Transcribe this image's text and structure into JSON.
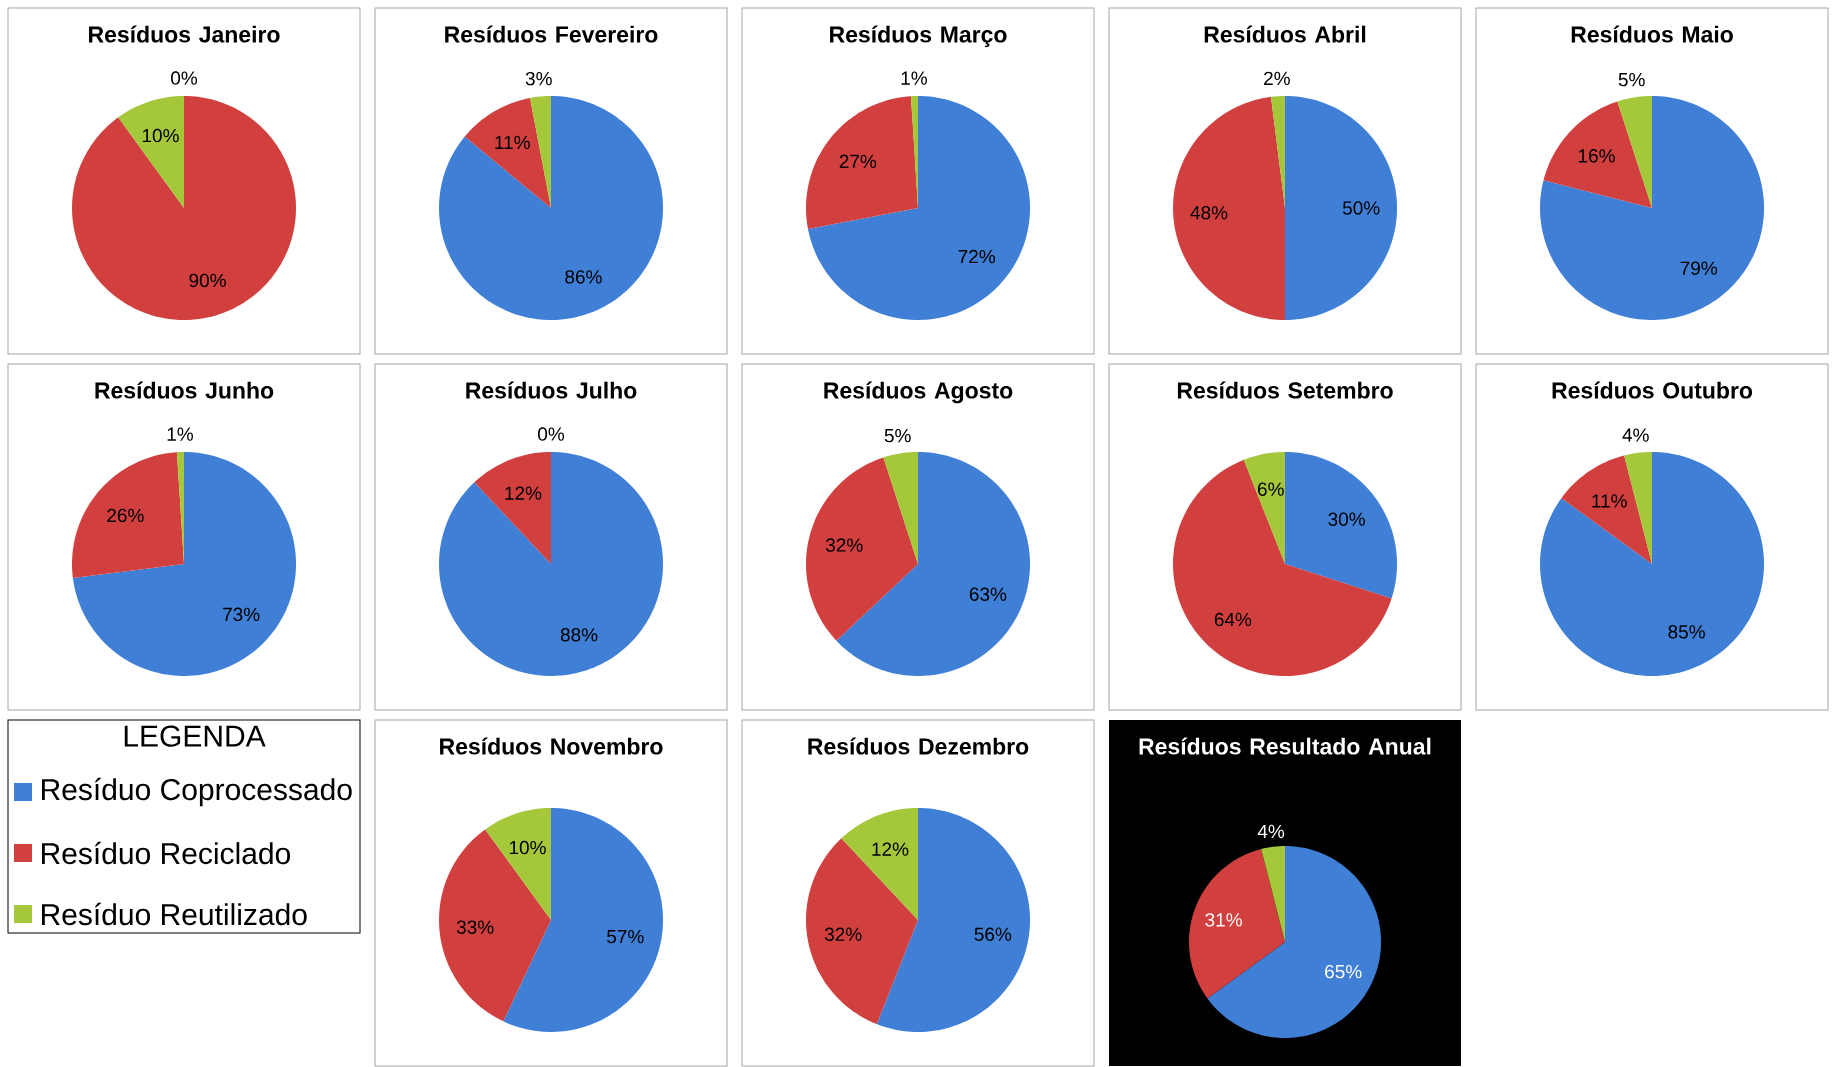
{
  "chart_data": [
    {
      "type": "pie",
      "title": "Resíduos Janeiro",
      "categories": [
        null,
        null,
        null
      ],
      "values": [
        0,
        90,
        10
      ],
      "colors": [
        "#3f7fd6",
        "#d23f3f",
        "#a5c83a"
      ],
      "value_labels": [
        "0%",
        "90%",
        "10%"
      ]
    },
    {
      "type": "pie",
      "title": "Resíduos Fevereiro",
      "categories": [
        null,
        null,
        null
      ],
      "values": [
        86,
        11,
        3
      ],
      "colors": [
        "#3f7fd6",
        "#d23f3f",
        "#a5c83a"
      ],
      "value_labels": [
        "86%",
        "11%",
        "3%"
      ]
    },
    {
      "type": "pie",
      "title": "Resíduos Março",
      "categories": [
        null,
        null,
        null
      ],
      "values": [
        72,
        27,
        1
      ],
      "colors": [
        "#3f7fd6",
        "#d23f3f",
        "#a5c83a"
      ],
      "value_labels": [
        "72%",
        "27%",
        "1%"
      ]
    },
    {
      "type": "pie",
      "title": "Resíduos Abril",
      "categories": [
        null,
        null,
        null
      ],
      "values": [
        50,
        48,
        2
      ],
      "colors": [
        "#3f7fd6",
        "#d23f3f",
        "#a5c83a"
      ],
      "value_labels": [
        "50%",
        "48%",
        "2%"
      ]
    },
    {
      "type": "pie",
      "title": "Resíduos Maio",
      "categories": [
        null,
        null,
        null
      ],
      "values": [
        79,
        16,
        5
      ],
      "colors": [
        "#3f7fd6",
        "#d23f3f",
        "#a5c83a"
      ],
      "value_labels": [
        "79%",
        "16%",
        "5%"
      ]
    },
    {
      "type": "pie",
      "title": "Resíduos Junho",
      "categories": [
        null,
        null,
        null
      ],
      "values": [
        73,
        26,
        1
      ],
      "colors": [
        "#3f7fd6",
        "#d23f3f",
        "#a5c83a"
      ],
      "value_labels": [
        "73%",
        "26%",
        "1%"
      ]
    },
    {
      "type": "pie",
      "title": "Resíduos Julho",
      "categories": [
        null,
        null,
        null
      ],
      "values": [
        88,
        12,
        0
      ],
      "colors": [
        "#3f7fd6",
        "#d23f3f",
        "#a5c83a"
      ],
      "value_labels": [
        "88%",
        "12%",
        "0%"
      ]
    },
    {
      "type": "pie",
      "title": "Resíduos Agosto",
      "categories": [
        null,
        null,
        null
      ],
      "values": [
        63,
        32,
        5
      ],
      "colors": [
        "#3f7fd6",
        "#d23f3f",
        "#a5c83a"
      ],
      "value_labels": [
        "63%",
        "32%",
        "5%"
      ]
    },
    {
      "type": "pie",
      "title": "Resíduos Setembro",
      "categories": [
        null,
        null,
        null
      ],
      "values": [
        30,
        64,
        6
      ],
      "colors": [
        "#3f7fd6",
        "#d23f3f",
        "#a5c83a"
      ],
      "value_labels": [
        "30%",
        "64%",
        "6%"
      ]
    },
    {
      "type": "pie",
      "title": "Resíduos Outubro",
      "categories": [
        null,
        null,
        null
      ],
      "values": [
        85,
        11,
        4
      ],
      "colors": [
        "#3f7fd6",
        "#d23f3f",
        "#a5c83a"
      ],
      "value_labels": [
        "85%",
        "11%",
        "4%"
      ]
    },
    {
      "type": "other",
      "title": "LEGENDA",
      "categories": [
        "Resíduo Coprocessado",
        "Resíduo Reciclado",
        "Resíduo Reutilizado"
      ],
      "colors": [
        "#3f7fd6",
        "#d23f3f",
        "#a5c83a"
      ]
    },
    {
      "type": "pie",
      "title": "Resíduos Novembro",
      "categories": [
        null,
        null,
        null
      ],
      "values": [
        57,
        33,
        10
      ],
      "colors": [
        "#3f7fd6",
        "#d23f3f",
        "#a5c83a"
      ],
      "value_labels": [
        "57%",
        "33%",
        "10%"
      ]
    },
    {
      "type": "pie",
      "title": "Resíduos Dezembro",
      "categories": [
        null,
        null,
        null
      ],
      "values": [
        56,
        32,
        12
      ],
      "colors": [
        "#3f7fd6",
        "#d23f3f",
        "#a5c83a"
      ],
      "value_labels": [
        "56%",
        "32%",
        "12%"
      ]
    },
    {
      "type": "pie",
      "title": "Resíduos Resultado Anual",
      "categories": [
        null,
        null,
        null
      ],
      "values": [
        65,
        31,
        4
      ],
      "colors": [
        "#3f7fd6",
        "#d23f3f",
        "#a5c83a"
      ],
      "value_labels": [
        "65%",
        "31%",
        "4%"
      ]
    }
  ]
}
